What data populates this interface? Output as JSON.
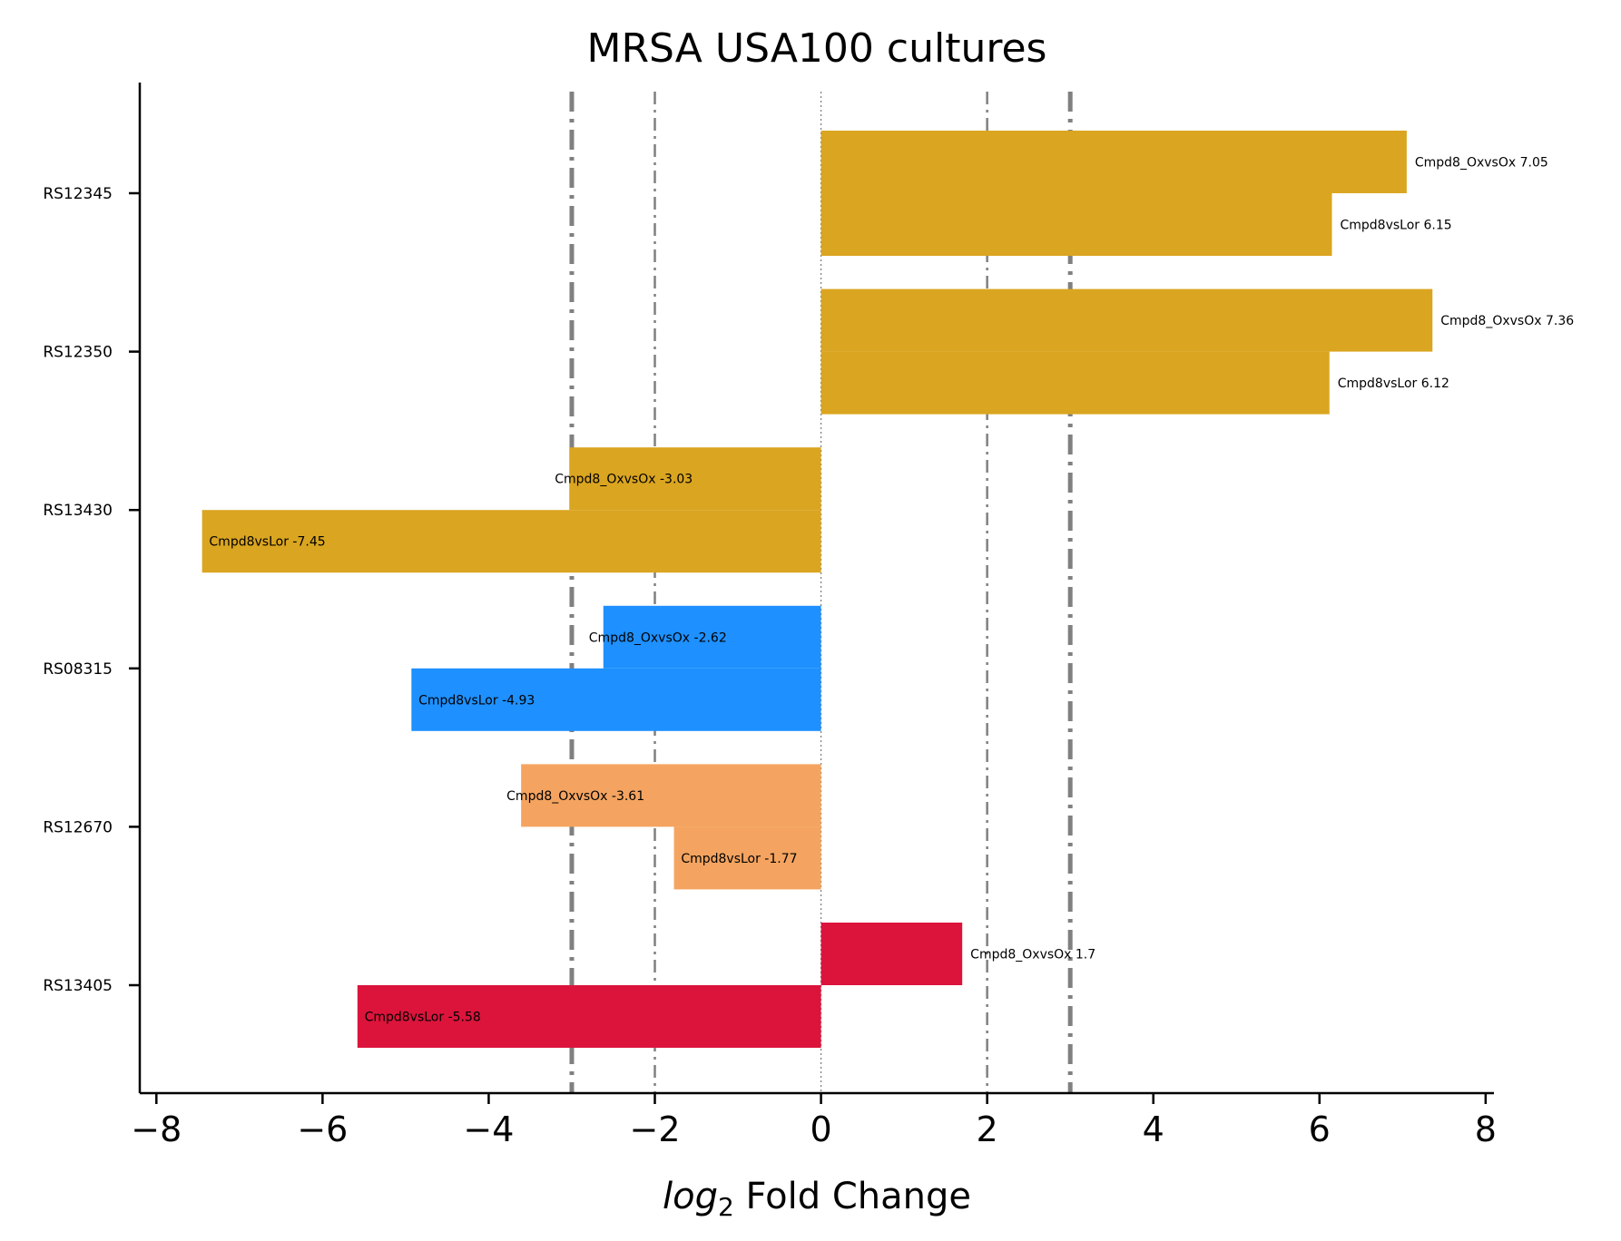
{
  "chart_data": {
    "type": "bar",
    "orientation": "horizontal",
    "title": "MRSA USA100 cultures",
    "xlabel_italic": "log",
    "xlabel_sub": "2",
    "xlabel_rest": " Fold Change",
    "xlim": [
      -8.2,
      8.1
    ],
    "xticks": [
      -8,
      -6,
      -4,
      -2,
      0,
      2,
      4,
      6,
      8
    ],
    "xtick_labels": [
      "−8",
      "−6",
      "−4",
      "−2",
      "0",
      "2",
      "4",
      "6",
      "8"
    ],
    "reference_lines": [
      {
        "x": -3,
        "style": "thick-dashdot"
      },
      {
        "x": -2,
        "style": "thin-dashdot"
      },
      {
        "x": 0,
        "style": "dotted"
      },
      {
        "x": 2,
        "style": "thin-dashdot"
      },
      {
        "x": 3,
        "style": "thick-dashdot"
      }
    ],
    "categories": [
      {
        "name": "RS12345",
        "color": "#DAA520",
        "bars": [
          {
            "label": "Cmpd8_OxvsOx 7.05",
            "value": 7.05
          },
          {
            "label": "Cmpd8vsLor 6.15",
            "value": 6.15
          }
        ]
      },
      {
        "name": "RS12350",
        "color": "#DAA520",
        "bars": [
          {
            "label": "Cmpd8_OxvsOx 7.36",
            "value": 7.36
          },
          {
            "label": "Cmpd8vsLor 6.12",
            "value": 6.12
          }
        ]
      },
      {
        "name": "RS13430",
        "color": "#DAA520",
        "bars": [
          {
            "label": "Cmpd8_OxvsOx -3.03",
            "value": -3.03
          },
          {
            "label": "Cmpd8vsLor -7.45",
            "value": -7.45
          }
        ]
      },
      {
        "name": "RS08315",
        "color": "#1E90FF",
        "bars": [
          {
            "label": "Cmpd8_OxvsOx -2.62",
            "value": -2.62
          },
          {
            "label": "Cmpd8vsLor -4.93",
            "value": -4.93
          }
        ]
      },
      {
        "name": "RS12670",
        "color": "#F4A460",
        "bars": [
          {
            "label": "Cmpd8_OxvsOx -3.61",
            "value": -3.61
          },
          {
            "label": "Cmpd8vsLor -1.77",
            "value": -1.77
          }
        ]
      },
      {
        "name": "RS13405",
        "color": "#DC143C",
        "bars": [
          {
            "label": "Cmpd8_OxvsOx 1.7",
            "value": 1.7
          },
          {
            "label": "Cmpd8vsLor -5.58",
            "value": -5.58
          }
        ]
      }
    ],
    "grid": false,
    "legend": "none"
  }
}
